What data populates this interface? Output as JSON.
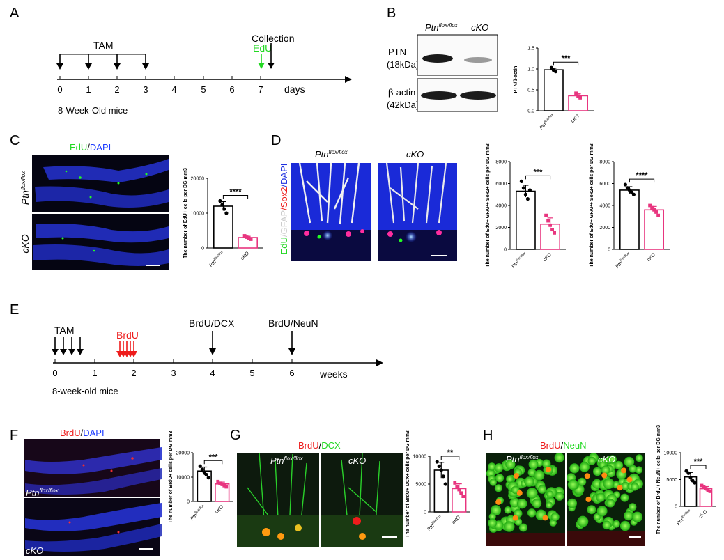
{
  "panels": {
    "A": {
      "label": "A",
      "tam_label": "TAM",
      "edu_label": "EdU",
      "collection_label": "Collection",
      "days": [
        "0",
        "1",
        "2",
        "3",
        "4",
        "5",
        "6",
        "7"
      ],
      "axis_unit": "days",
      "mice_label": "8-Week-Old mice"
    },
    "B": {
      "label": "B",
      "col1": "Ptn",
      "col1_sup": "flox/flox",
      "col2": "cKO",
      "row1": "PTN",
      "row1_sub": "(18kDa)",
      "row2": "β-actin",
      "row2_sub": "(42kDa)"
    },
    "C": {
      "label": "C",
      "stain_green": "EdU",
      "stain_sep": "/",
      "stain_blue": "DAPI"
    },
    "D": {
      "label": "D",
      "img1": "Ptn",
      "img1_sup": "flox/flox",
      "img2": "cKO",
      "stain_edu": "EdU",
      "stain_gfap": "/GFAP",
      "stain_sox2": "/Sox2",
      "stain_dapi": "/DAPI"
    },
    "E": {
      "label": "E",
      "tam_label": "TAM",
      "brdu_label": "BrdU",
      "dcx_label": "BrdU/DCX",
      "neun_label": "BrdU/NeuN",
      "weeks": [
        "0",
        "1",
        "2",
        "3",
        "4",
        "5",
        "6"
      ],
      "axis_unit": "weeks",
      "mice_label": "8-week-old mice"
    },
    "F": {
      "label": "F",
      "stain_red": "BrdU",
      "stain_sep": "/",
      "stain_blue": "DAPI",
      "img1": "Ptn",
      "img1_sup": "flox/flox",
      "img2": "cKO"
    },
    "G": {
      "label": "G",
      "stain_red": "BrdU",
      "stain_sep": "/",
      "stain_green": "DCX",
      "img1": "Ptn",
      "img1_sup": "flox/flox",
      "img2": "cKO"
    },
    "H": {
      "label": "H",
      "stain_red": "BrdU",
      "stain_sep": "/",
      "stain_green": "NeuN",
      "img1": "Ptn",
      "img1_sup": "flox/flox",
      "img2": "cKO"
    }
  },
  "chart_data": [
    {
      "id": "B",
      "type": "bar",
      "ylabel": "PTN/β-actin",
      "categories": [
        "Ptn flox/flox",
        "cKO"
      ],
      "values": [
        0.98,
        0.36
      ],
      "ylim": [
        0,
        1.5
      ],
      "yticks": [
        "0.0",
        "0.5",
        "1.0",
        "1.5"
      ],
      "sig": "***",
      "points": [
        [
          1.03,
          0.97,
          0.94
        ],
        [
          0.42,
          0.35,
          0.31
        ]
      ]
    },
    {
      "id": "C",
      "type": "bar",
      "ylabel": "The number of EdU+ cells per DG mm3",
      "categories": [
        "Ptn flox/flox",
        "cKO"
      ],
      "values": [
        12000,
        3000
      ],
      "ylim": [
        0,
        20000
      ],
      "yticks": [
        "0",
        "10000",
        "20000"
      ],
      "sig": "****",
      "points": [
        [
          13500,
          12400,
          11200,
          10000
        ],
        [
          3500,
          3100,
          2800,
          2500
        ]
      ]
    },
    {
      "id": "D1",
      "type": "bar",
      "ylabel": "The number of EdU+ GFAP+ Sox2+ cells per DG mm3",
      "categories": [
        "Ptn flox/flox",
        "cKO"
      ],
      "values": [
        5300,
        2300
      ],
      "ylim": [
        0,
        8000
      ],
      "yticks": [
        "0",
        "2000",
        "4000",
        "6000",
        "8000"
      ],
      "sig": "***",
      "points": [
        [
          6200,
          5600,
          5000,
          4600,
          5400
        ],
        [
          3100,
          2600,
          2200,
          1800,
          1500
        ]
      ]
    },
    {
      "id": "D2",
      "type": "bar",
      "ylabel": "The number of EdU+ GFAP+ Sox2+ cells per DG mm3",
      "categories": [
        "Ptn flox/flox",
        "cKO"
      ],
      "values": [
        5400,
        3600
      ],
      "ylim": [
        0,
        8000
      ],
      "yticks": [
        "0",
        "2000",
        "4000",
        "6000",
        "8000"
      ],
      "sig": "****",
      "points": [
        [
          5900,
          5600,
          5400,
          5200,
          5000
        ],
        [
          4000,
          3800,
          3600,
          3400,
          3100
        ]
      ]
    },
    {
      "id": "F",
      "type": "bar",
      "ylabel": "The number of BrdU+ cells per DG mm3",
      "categories": [
        "Ptn flox/flox",
        "cKO"
      ],
      "values": [
        12500,
        7200
      ],
      "ylim": [
        0,
        20000
      ],
      "yticks": [
        "0",
        "10000",
        "20000"
      ],
      "sig": "***",
      "points": [
        [
          14500,
          13200,
          12000,
          11000,
          9800
        ],
        [
          8200,
          7500,
          7000,
          6500,
          6000
        ]
      ]
    },
    {
      "id": "G",
      "type": "bar",
      "ylabel": "The number of BrdU+ DCX+ cells per DG mm3",
      "categories": [
        "Ptn flox/flox",
        "cKO"
      ],
      "values": [
        7500,
        4200
      ],
      "ylim": [
        0,
        10000
      ],
      "yticks": [
        "0",
        "5000",
        "10000"
      ],
      "sig": "**",
      "points": [
        [
          9000,
          8200,
          7500,
          6400,
          5000
        ],
        [
          5200,
          4600,
          4000,
          3400,
          2800
        ]
      ]
    },
    {
      "id": "H",
      "type": "bar",
      "ylabel": "The number of BrdU+ NeuN+ cells per DG mm3",
      "categories": [
        "Ptn flox/flox",
        "cKO"
      ],
      "values": [
        5500,
        3300
      ],
      "ylim": [
        0,
        10000
      ],
      "yticks": [
        "0",
        "5000",
        "10000"
      ],
      "sig": "***",
      "points": [
        [
          6600,
          6200,
          5400,
          4800,
          4400
        ],
        [
          3900,
          3600,
          3300,
          3000,
          2800
        ]
      ]
    }
  ],
  "colors": {
    "control": "#000000",
    "cko": "#e8357f",
    "dapi": "#2032e0",
    "edu": "#22e022",
    "brdu": "#ee1c1c",
    "arrow": "#000000"
  }
}
